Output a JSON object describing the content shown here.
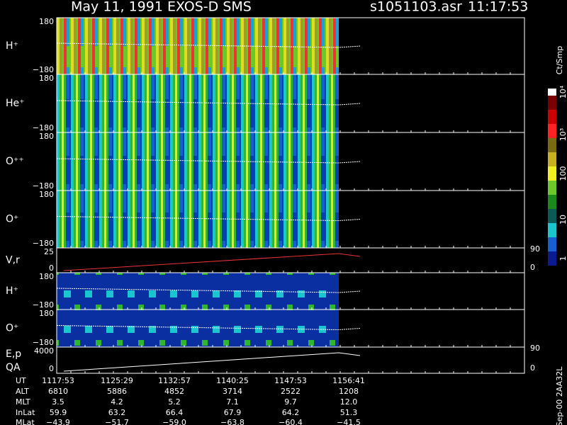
{
  "header": {
    "title": "May 11, 1991   EXOS-D SMS",
    "file": "s1051103.asr",
    "time": "11:17:53"
  },
  "panels": [
    {
      "label": "H⁺",
      "top": "180",
      "bottom": "−180"
    },
    {
      "label": "He⁺",
      "top": "180",
      "bottom": "−180"
    },
    {
      "label": "O⁺⁺",
      "top": "180",
      "bottom": "−180"
    },
    {
      "label": "O⁺",
      "top": "180",
      "bottom": "−180"
    },
    {
      "label": "V,r",
      "top": "25",
      "bottom": "0",
      "right_top": "90",
      "right_bottom": "0"
    },
    {
      "label": "H⁺",
      "top": "180",
      "bottom": "−180"
    },
    {
      "label": "O⁺",
      "top": "180",
      "bottom": "−180"
    },
    {
      "label": "E,p",
      "label2": "QA",
      "top": "4000",
      "bottom": "0",
      "right_top": "90",
      "right_bottom": "0"
    }
  ],
  "colorbar": {
    "unit": "Ct/Smp",
    "ticks": [
      "10⁴",
      "10³",
      "100",
      "10",
      "1"
    ]
  },
  "table": {
    "rows": [
      [
        "UT",
        "1117:53",
        "1125:29",
        "1132:57",
        "1140:25",
        "1147:53",
        "1156:41"
      ],
      [
        "ALT",
        "6810",
        "5886",
        "4852",
        "3714",
        "2522",
        "1208"
      ],
      [
        "MLT",
        "3.5",
        "4.2",
        "5.2",
        "7.1",
        "9.7",
        "12.0"
      ],
      [
        "InLat",
        "59.9",
        "63.2",
        "66.4",
        "67.9",
        "64.2",
        "51.3"
      ],
      [
        "MLat",
        "−43.9",
        "−51.7",
        "−59.0",
        "−63.8",
        "−60.4",
        "−41.5"
      ]
    ]
  },
  "footer": "Sep-00  2AA32L"
}
